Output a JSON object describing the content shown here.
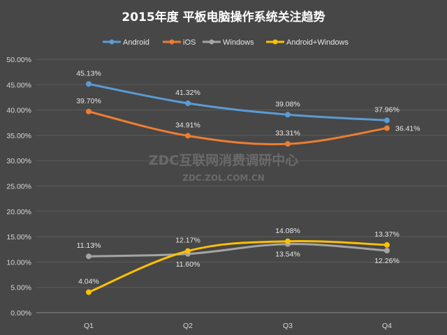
{
  "chart_data": {
    "type": "line",
    "title": "2015年度 平板电脑操作系统关注趋势",
    "categories": [
      "Q1",
      "Q2",
      "Q3",
      "Q4"
    ],
    "ylim": [
      0,
      50
    ],
    "ytick_labels": [
      "0.00%",
      "5.00%",
      "10.00%",
      "15.00%",
      "20.00%",
      "25.00%",
      "30.00%",
      "35.00%",
      "40.00%",
      "45.00%",
      "50.00%"
    ],
    "legend_position": "top",
    "grid": true,
    "series": [
      {
        "name": "Android",
        "color": "#5b9bd5",
        "values": [
          45.13,
          41.32,
          39.08,
          37.96
        ],
        "labels": [
          "45.13%",
          "41.32%",
          "39.08%",
          "37.96%"
        ],
        "label_pos": [
          "above",
          "above",
          "above",
          "above"
        ]
      },
      {
        "name": "iOS",
        "color": "#ed7d31",
        "values": [
          39.7,
          34.91,
          33.31,
          36.41
        ],
        "labels": [
          "39.70%",
          "34.91%",
          "33.31%",
          "36.41%"
        ],
        "label_pos": [
          "above",
          "above",
          "above",
          "right"
        ]
      },
      {
        "name": "Windows",
        "color": "#a5a5a5",
        "values": [
          11.13,
          11.6,
          13.54,
          12.26
        ],
        "labels": [
          "11.13%",
          "11.60%",
          "13.54%",
          "12.26%"
        ],
        "label_pos": [
          "above",
          "below",
          "below",
          "below"
        ]
      },
      {
        "name": "Android+Windows",
        "color": "#ffc000",
        "values": [
          4.04,
          12.17,
          14.08,
          13.37
        ],
        "labels": [
          "4.04%",
          "12.17%",
          "14.08%",
          "13.37%"
        ],
        "label_pos": [
          "above",
          "above",
          "above",
          "above"
        ]
      }
    ]
  },
  "watermark": {
    "line1": "ZDC互联网消费调研中心",
    "line2": "ZDC.ZOL.COM.CN"
  }
}
